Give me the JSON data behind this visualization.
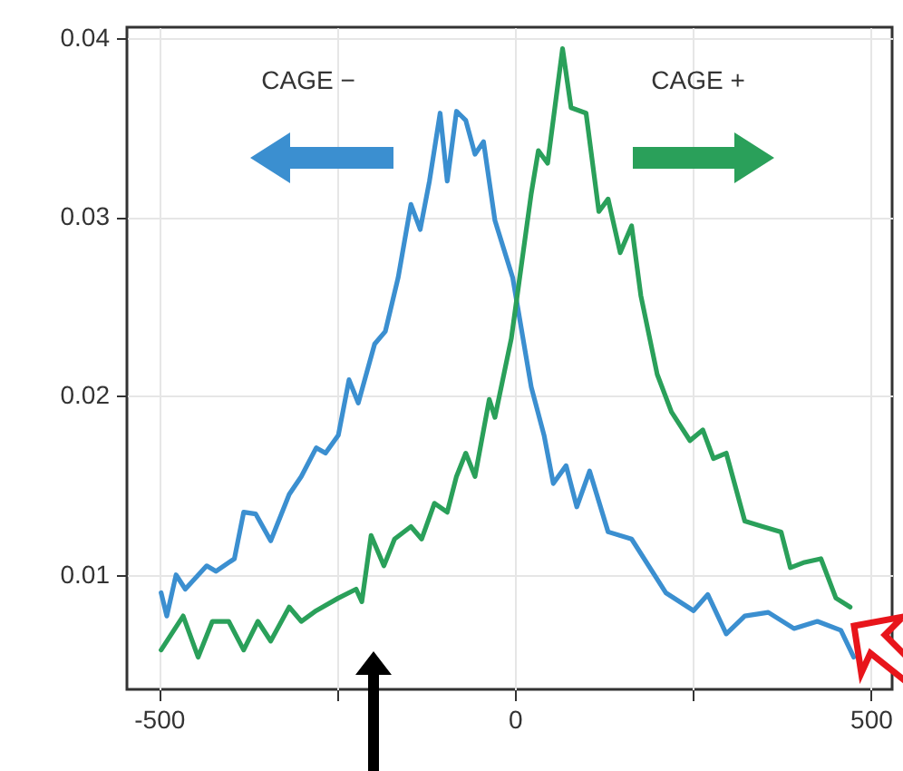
{
  "chart_data": {
    "type": "line",
    "annotations": [
      "CAGE −",
      "CAGE +"
    ],
    "xlim": [
      -545,
      530
    ],
    "ylim": [
      0.0036,
      0.0406
    ],
    "xticks": [
      -500,
      {
        "value": -250,
        "label": null
      },
      0,
      {
        "value": 250,
        "label": null
      },
      500
    ],
    "yticks": [
      0.01,
      0.02,
      0.03,
      0.04
    ],
    "grid": true,
    "line_style": "solid",
    "series": [
      {
        "color": "#3b8fd0",
        "x": [
          -497,
          -489,
          -476,
          -463,
          -433,
          -420,
          -394,
          -381,
          -364,
          -343,
          -317,
          -300,
          -279,
          -266,
          -248,
          -233,
          -220,
          -197,
          -182,
          -164,
          -146,
          -133,
          -120,
          -105,
          -95,
          -82,
          -69,
          -56,
          -44,
          -28,
          -3,
          23,
          41,
          54,
          72,
          87,
          105,
          131,
          164,
          212,
          251,
          271,
          297,
          323,
          356,
          392,
          425,
          458,
          476
        ],
        "values": [
          0.009,
          0.0077,
          0.01,
          0.0092,
          0.0105,
          0.0102,
          0.0109,
          0.0135,
          0.0134,
          0.0119,
          0.0145,
          0.0155,
          0.0171,
          0.0168,
          0.0178,
          0.0209,
          0.0196,
          0.0229,
          0.0236,
          0.0266,
          0.0307,
          0.0293,
          0.032,
          0.0358,
          0.032,
          0.0359,
          0.0354,
          0.0335,
          0.0342,
          0.0298,
          0.0266,
          0.0205,
          0.0178,
          0.0151,
          0.0161,
          0.0138,
          0.0158,
          0.0124,
          0.012,
          0.009,
          0.008,
          0.0089,
          0.0067,
          0.0077,
          0.0079,
          0.007,
          0.0074,
          0.0069,
          0.0054
        ]
      },
      {
        "color": "#2aa05a",
        "x": [
          -497,
          -466,
          -445,
          -425,
          -402,
          -381,
          -361,
          -343,
          -317,
          -300,
          -279,
          -248,
          -223,
          -215,
          -202,
          -184,
          -169,
          -146,
          -131,
          -113,
          -95,
          -82,
          -69,
          -56,
          -36,
          -28,
          -5,
          23,
          33,
          46,
          67,
          79,
          100,
          118,
          131,
          148,
          164,
          177,
          200,
          220,
          246,
          264,
          279,
          297,
          323,
          348,
          374,
          387,
          407,
          430,
          451,
          471
        ],
        "values": [
          0.0058,
          0.0077,
          0.0054,
          0.0074,
          0.0074,
          0.0058,
          0.0074,
          0.0063,
          0.0082,
          0.0074,
          0.008,
          0.0087,
          0.0092,
          0.0085,
          0.0122,
          0.0105,
          0.012,
          0.0127,
          0.012,
          0.014,
          0.0135,
          0.0155,
          0.0168,
          0.0155,
          0.0198,
          0.0188,
          0.0232,
          0.0313,
          0.0337,
          0.033,
          0.0394,
          0.0361,
          0.0358,
          0.0303,
          0.031,
          0.028,
          0.0295,
          0.0256,
          0.0212,
          0.0191,
          0.0175,
          0.0181,
          0.0165,
          0.0168,
          0.013,
          0.0127,
          0.0124,
          0.0104,
          0.0107,
          0.0109,
          0.0087,
          0.0082
        ]
      }
    ]
  }
}
